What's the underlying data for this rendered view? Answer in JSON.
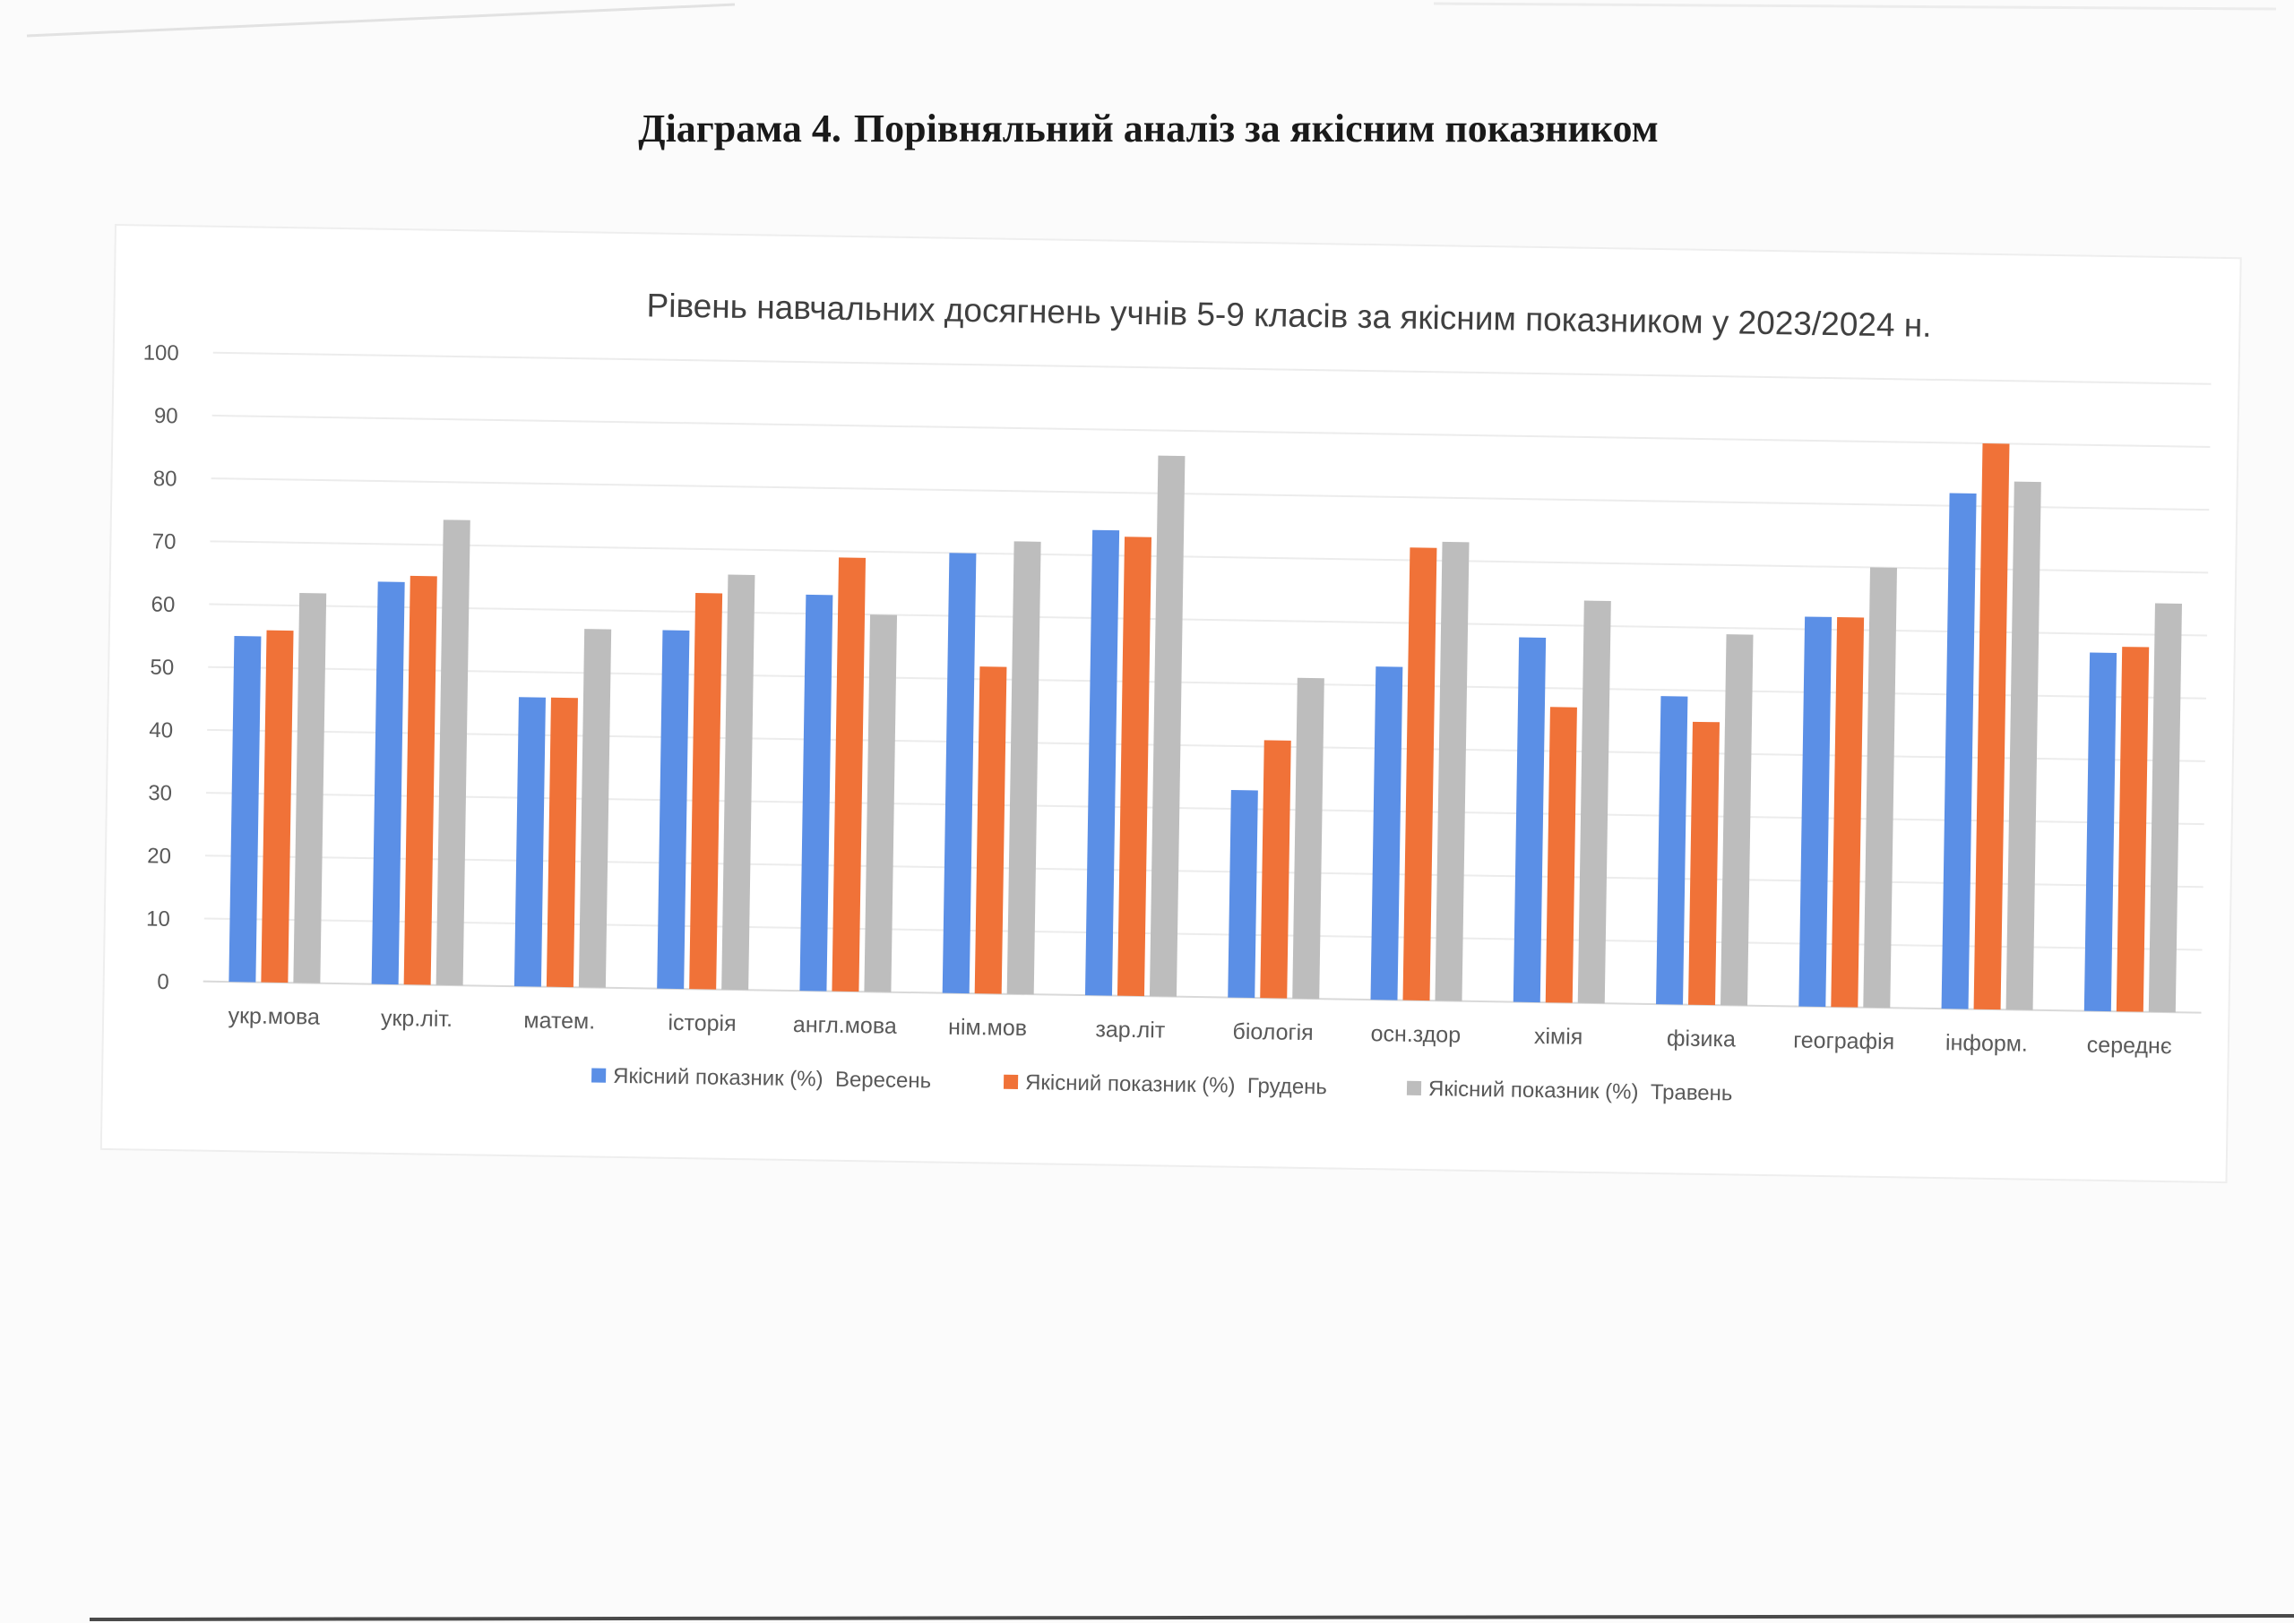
{
  "document": {
    "heading_prefix": "Діаграма 4.",
    "heading_main": "Порівняльний аналіз за якісним показником"
  },
  "chart_data": {
    "type": "bar",
    "title": "Рівень навчальних досягнень учнів 5-9 класів за якісним показником  у 2023/2024 н.",
    "xlabel": "",
    "ylabel": "",
    "ylim": [
      0,
      100
    ],
    "yticks": [
      0,
      10,
      20,
      30,
      40,
      50,
      60,
      70,
      80,
      90,
      100
    ],
    "grid": true,
    "legend_position": "bottom",
    "categories": [
      "укр.мова",
      "укр.літ.",
      "матем.",
      "історія",
      "англ.мова",
      "нім.мов",
      "зар.літ",
      "біологія",
      "осн.здор",
      "хімія",
      "фізика",
      "географія",
      "інформ.",
      "середнє"
    ],
    "series": [
      {
        "name": "Якісний показник (%)  Вересень",
        "color": "#5b8fe6",
        "values": [
          55,
          64,
          46,
          57,
          63,
          70,
          74,
          33,
          53,
          58,
          49,
          62,
          82,
          57
        ]
      },
      {
        "name": "Якісний показник (%)  Грудень",
        "color": "#f07238",
        "values": [
          56,
          65,
          46,
          63,
          69,
          52,
          73,
          41,
          72,
          47,
          45,
          62,
          90,
          58
        ]
      },
      {
        "name": "Якісний показник (%)  Травень",
        "color": "#bdbdbd",
        "values": [
          62,
          74,
          57,
          66,
          60,
          72,
          86,
          51,
          73,
          64,
          59,
          70,
          84,
          65
        ]
      }
    ]
  }
}
